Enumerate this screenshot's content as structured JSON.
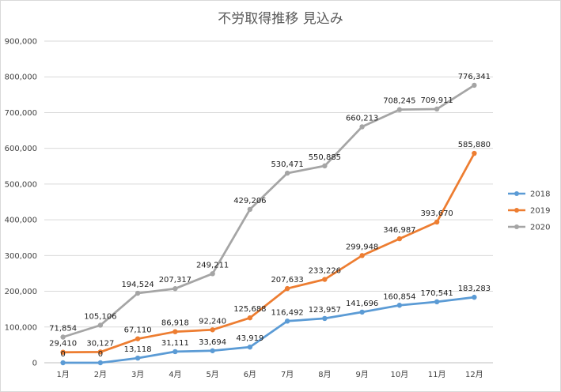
{
  "chart_data": {
    "type": "line",
    "title": "不労取得推移 見込み",
    "categories": [
      "1月",
      "2月",
      "3月",
      "4月",
      "5月",
      "6月",
      "7月",
      "8月",
      "9月",
      "10月",
      "11月",
      "12月"
    ],
    "ylim": [
      0,
      900000
    ],
    "yticks": [
      0,
      100000,
      200000,
      300000,
      400000,
      500000,
      600000,
      700000,
      800000,
      900000
    ],
    "ytick_labels": [
      "0",
      "100,000",
      "200,000",
      "300,000",
      "400,000",
      "500,000",
      "600,000",
      "700,000",
      "800,000",
      "900,000"
    ],
    "grid": true,
    "legend_position": "right",
    "series": [
      {
        "name": "2018",
        "color": "#5b9bd5",
        "values": [
          0,
          0,
          13118,
          31111,
          33694,
          43919,
          116492,
          123957,
          141696,
          160854,
          170541,
          183283
        ],
        "labels": [
          "0",
          "0",
          "13,118",
          "31,111",
          "33,694",
          "43,919",
          "116,492",
          "123,957",
          "141,696",
          "160,854",
          "170,541",
          "183,283"
        ]
      },
      {
        "name": "2019",
        "color": "#ed7d31",
        "values": [
          29410,
          30127,
          67110,
          86918,
          92240,
          125688,
          207633,
          233226,
          299948,
          346987,
          393670,
          585880
        ],
        "labels": [
          "29,410",
          "30,127",
          "67,110",
          "86,918",
          "92,240",
          "125,688",
          "207,633",
          "233,226",
          "299,948",
          "346,987",
          "393,670",
          "585,880"
        ]
      },
      {
        "name": "2020",
        "color": "#a5a5a5",
        "values": [
          71854,
          105106,
          194524,
          207317,
          249211,
          429206,
          530471,
          550885,
          660213,
          708245,
          709911,
          776341
        ],
        "labels": [
          "71,854",
          "105,106",
          "194,524",
          "207,317",
          "249,211",
          "429,206",
          "530,471",
          "550,885",
          "660,213",
          "708,245",
          "709,911",
          "776,341"
        ]
      }
    ]
  }
}
